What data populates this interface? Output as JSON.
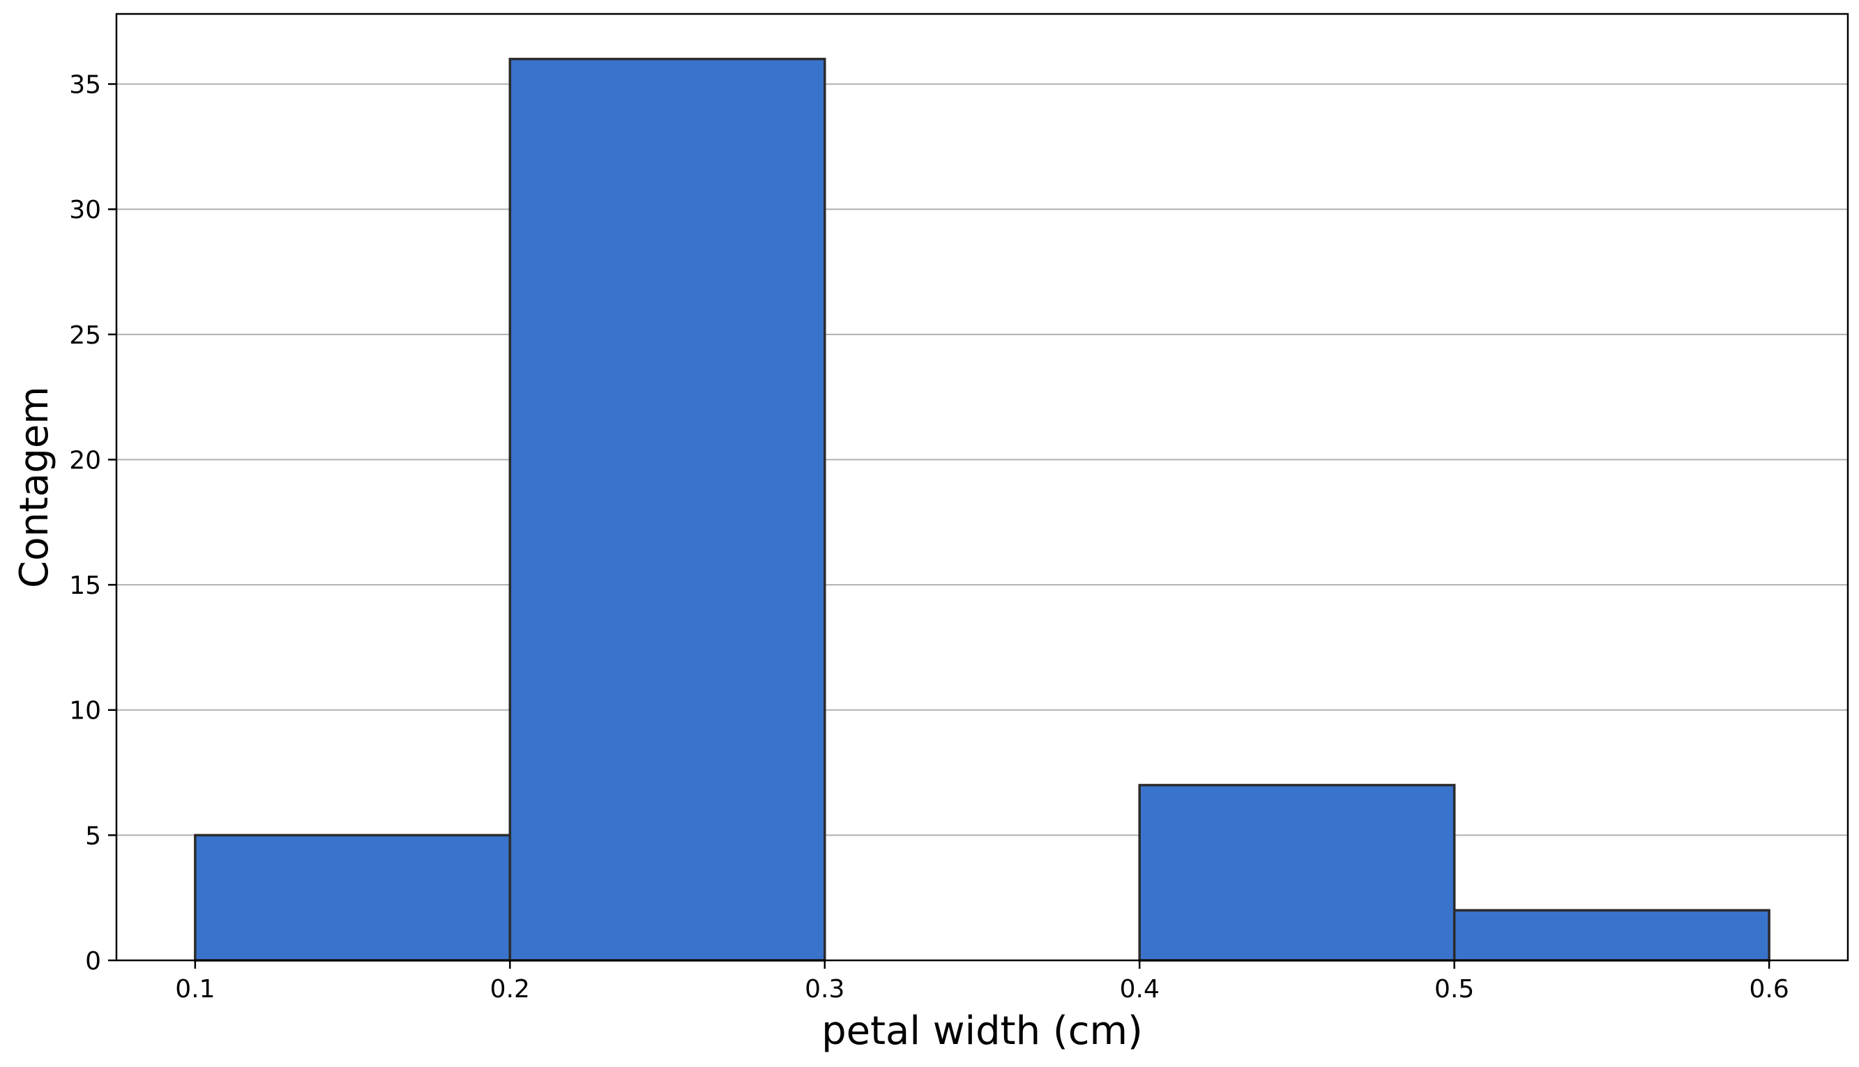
{
  "chart_data": {
    "type": "bar",
    "subtype": "histogram",
    "title": "",
    "xlabel": "petal width (cm)",
    "ylabel": "Contagem",
    "bins": [
      {
        "x0": 0.1,
        "x1": 0.2,
        "count": 5
      },
      {
        "x0": 0.2,
        "x1": 0.3,
        "count": 36
      },
      {
        "x0": 0.3,
        "x1": 0.4,
        "count": 0
      },
      {
        "x0": 0.4,
        "x1": 0.5,
        "count": 7
      },
      {
        "x0": 0.5,
        "x1": 0.6,
        "count": 2
      }
    ],
    "xlim": [
      0.075,
      0.625
    ],
    "ylim": [
      0,
      37.8
    ],
    "xticks": [
      0.1,
      0.2,
      0.3,
      0.4,
      0.5,
      0.6
    ],
    "xtick_labels": [
      "0.1",
      "0.2",
      "0.3",
      "0.4",
      "0.5",
      "0.6"
    ],
    "yticks": [
      0,
      5,
      10,
      15,
      20,
      25,
      30,
      35
    ],
    "ytick_labels": [
      "0",
      "5",
      "10",
      "15",
      "20",
      "25",
      "30",
      "35"
    ],
    "grid": {
      "x": false,
      "y": true
    },
    "legend": "none",
    "colors": {
      "bar_fill": "#3a73cc",
      "bar_edge": "#2b2b2b",
      "grid": "#b0b0b0",
      "axis": "#000000"
    }
  }
}
